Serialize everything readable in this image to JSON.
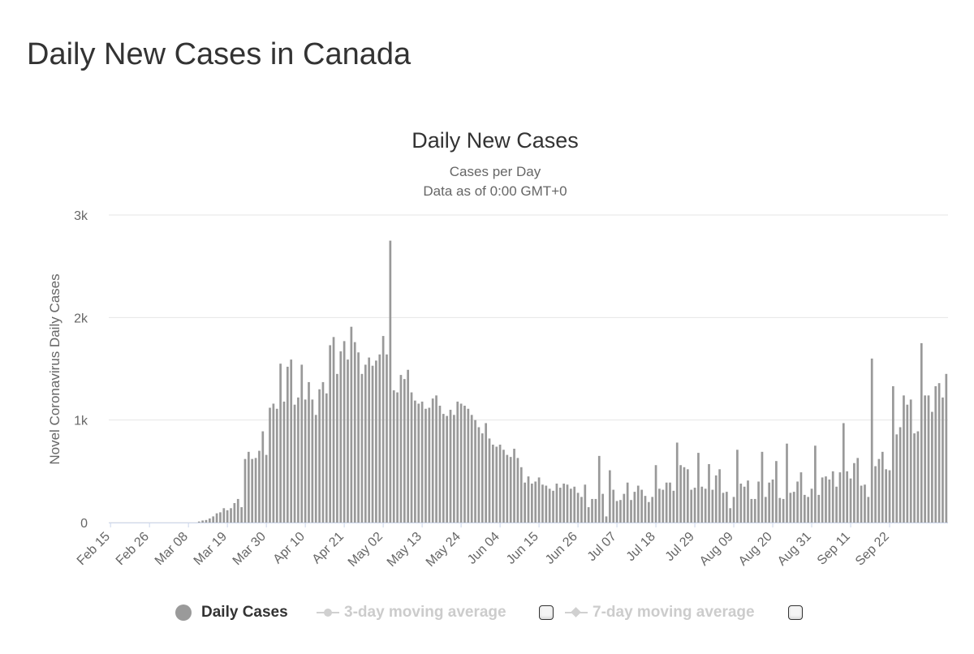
{
  "page": {
    "title": "Daily New Cases in Canada"
  },
  "chart_data": {
    "type": "bar",
    "title": "Daily New Cases",
    "subtitle_lines": [
      "Cases per Day",
      "Data as of 0:00 GMT+0"
    ],
    "ylabel": "Novel Coronavirus Daily Cases",
    "xlabel": "",
    "ylim": [
      0,
      3000
    ],
    "yticks": [
      0,
      1000,
      2000,
      3000
    ],
    "ytick_labels": [
      "0",
      "1k",
      "2k",
      "3k"
    ],
    "x_tick_labels": [
      "Feb 15",
      "Feb 26",
      "Mar 08",
      "Mar 19",
      "Mar 30",
      "Apr 10",
      "Apr 21",
      "May 02",
      "May 13",
      "May 24",
      "Jun 04",
      "Jun 15",
      "Jun 26",
      "Jul 07",
      "Jul 18",
      "Jul 29",
      "Aug 09",
      "Aug 20",
      "Aug 31",
      "Sep 11",
      "Sep 22"
    ],
    "tick_interval_days": 11,
    "series": [
      {
        "name": "Daily Cases",
        "color": "#999999",
        "start_date": "Feb 15",
        "values": [
          0,
          0,
          0,
          0,
          0,
          0,
          0,
          0,
          0,
          0,
          0,
          0,
          0,
          0,
          0,
          0,
          0,
          0,
          0,
          0,
          0,
          0,
          0,
          0,
          0,
          10,
          20,
          25,
          40,
          60,
          90,
          100,
          140,
          120,
          140,
          190,
          230,
          150,
          620,
          690,
          620,
          630,
          700,
          890,
          660,
          1120,
          1160,
          1110,
          1550,
          1180,
          1520,
          1590,
          1150,
          1220,
          1540,
          1200,
          1370,
          1200,
          1050,
          1300,
          1370,
          1260,
          1730,
          1810,
          1450,
          1670,
          1770,
          1590,
          1910,
          1760,
          1660,
          1450,
          1540,
          1610,
          1530,
          1580,
          1640,
          1820,
          1640,
          2750,
          1290,
          1270,
          1440,
          1400,
          1490,
          1270,
          1190,
          1160,
          1180,
          1110,
          1120,
          1210,
          1240,
          1140,
          1060,
          1040,
          1100,
          1050,
          1180,
          1160,
          1140,
          1110,
          1050,
          1000,
          930,
          870,
          970,
          820,
          760,
          740,
          760,
          710,
          660,
          640,
          720,
          630,
          540,
          390,
          450,
          380,
          400,
          440,
          370,
          360,
          330,
          310,
          380,
          340,
          380,
          370,
          330,
          350,
          290,
          250,
          370,
          150,
          230,
          230,
          650,
          280,
          60,
          510,
          320,
          210,
          220,
          280,
          390,
          220,
          300,
          360,
          320,
          260,
          200,
          250,
          560,
          330,
          320,
          390,
          390,
          310,
          780,
          560,
          540,
          520,
          320,
          340,
          680,
          350,
          330,
          570,
          320,
          460,
          520,
          290,
          300,
          140,
          250,
          710,
          380,
          350,
          410,
          230,
          230,
          400,
          690,
          250,
          390,
          420,
          600,
          240,
          230,
          770,
          290,
          300,
          400,
          490,
          270,
          250,
          330,
          750,
          270,
          440,
          450,
          420,
          500,
          350,
          490,
          970,
          500,
          430,
          580,
          630,
          360,
          370,
          250,
          1600,
          550,
          620,
          690,
          520,
          510,
          1330,
          860,
          930,
          1240,
          1150,
          1200,
          870,
          890,
          1750,
          1240,
          1240,
          1080,
          1330,
          1360,
          1220,
          1450
        ]
      }
    ],
    "legend": [
      {
        "label": "Daily Cases",
        "active": true
      },
      {
        "label": "3-day moving average",
        "active": false
      },
      {
        "label": "7-day moving average",
        "active": false
      }
    ],
    "legend_position": "bottom"
  }
}
